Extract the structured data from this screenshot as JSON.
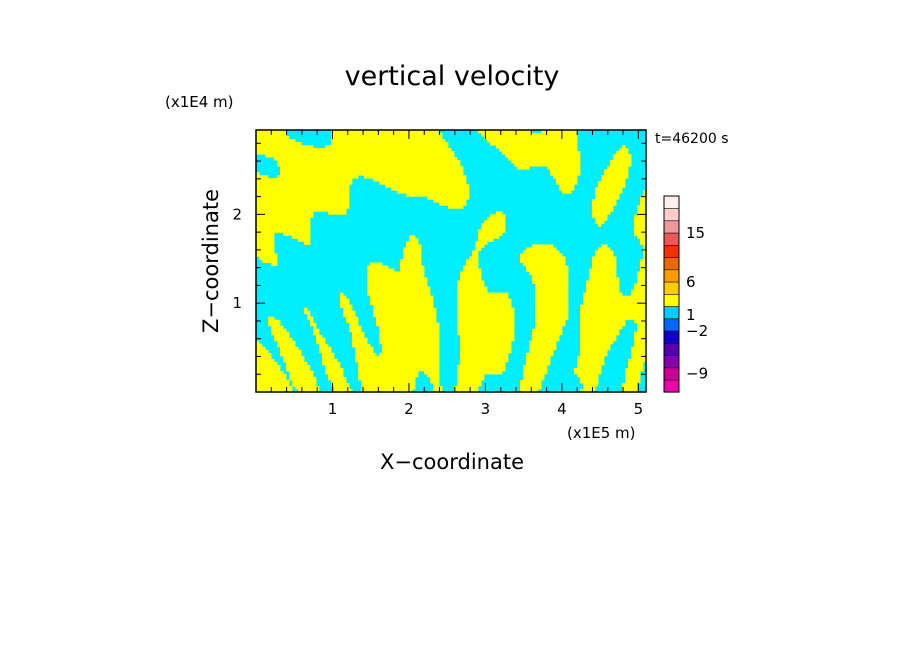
{
  "chart_data": {
    "type": "heatmap",
    "title": "vertical velocity",
    "xlabel": "X−coordinate",
    "ylabel": "Z−coordinate",
    "x_unit": "(x1E5 m)",
    "y_unit": "(x1E4 m)",
    "time_label": "t=46200 s",
    "xlim": [
      0,
      5.1
    ],
    "ylim": [
      0,
      2.95
    ],
    "x_ticks": [
      1,
      2,
      3,
      4,
      5
    ],
    "y_ticks": [
      1,
      2
    ],
    "x_tick_labels": [
      "1",
      "2",
      "3",
      "4",
      "5"
    ],
    "y_tick_labels": [
      "1",
      "2"
    ],
    "field_colors": {
      "positive": "#ffff00",
      "negative": "#00eeff"
    },
    "colorbar": {
      "colors": [
        "#ee00aa",
        "#cc0099",
        "#8800aa",
        "#5500aa",
        "#1100cc",
        "#0066ff",
        "#00ccff",
        "#ffff00",
        "#ffcc00",
        "#ff9900",
        "#ee6600",
        "#ee3300",
        "#ee5555",
        "#ee9999",
        "#ffcccc",
        "#ffeeee"
      ],
      "labels": [
        {
          "text": "−9",
          "at": 1.5
        },
        {
          "text": "−2",
          "at": 5
        },
        {
          "text": "1",
          "at": 6.3
        },
        {
          "text": "6",
          "at": 9
        },
        {
          "text": "15",
          "at": 13
        }
      ]
    }
  }
}
